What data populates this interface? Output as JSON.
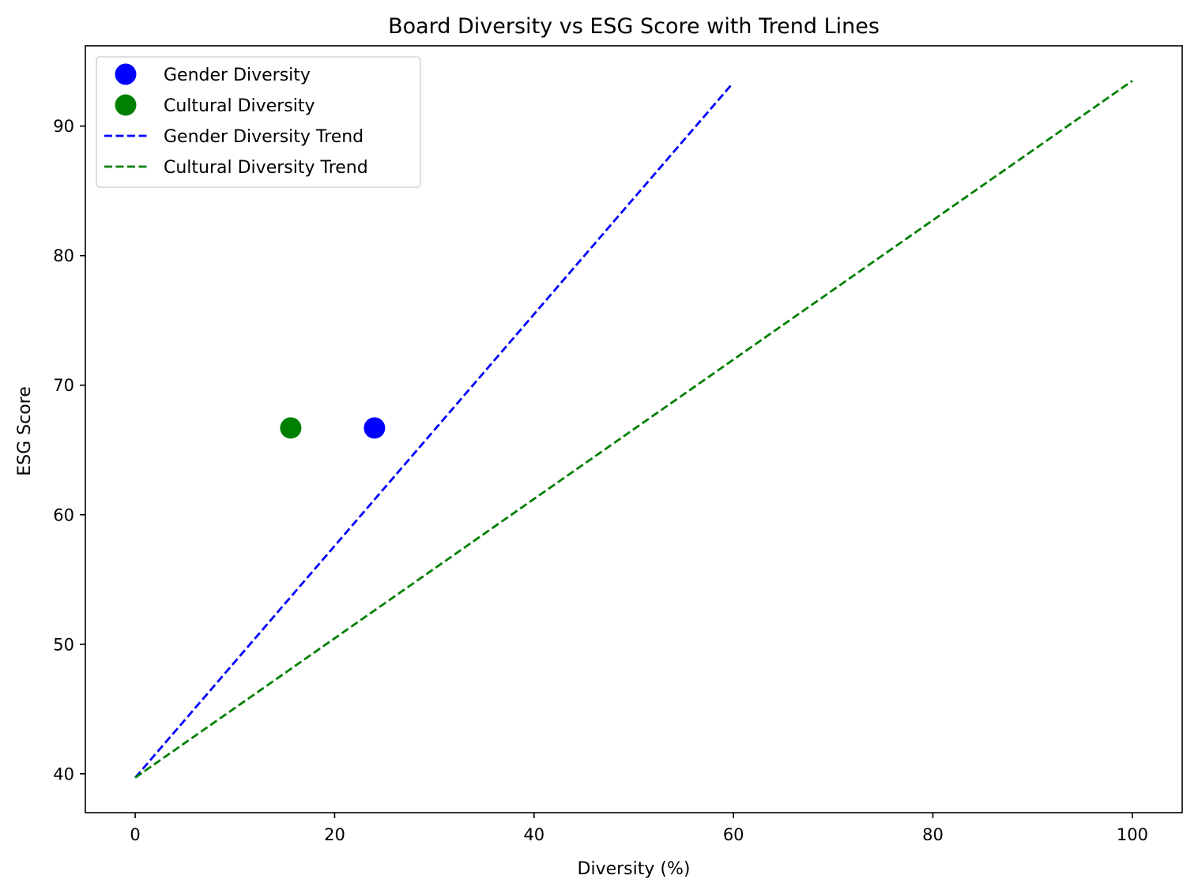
{
  "chart_data": {
    "type": "scatter",
    "title": "Board Diversity vs ESG Score with Trend Lines",
    "xlabel": "Diversity (%)",
    "ylabel": "ESG Score",
    "xlim": [
      -5,
      105
    ],
    "ylim": [
      37,
      96.2
    ],
    "xticks": [
      0,
      20,
      40,
      60,
      80,
      100
    ],
    "yticks": [
      40,
      50,
      60,
      70,
      80,
      90
    ],
    "grid": false,
    "legend_position": "top-left",
    "points": [
      {
        "name": "Gender Diversity",
        "x": 24.0,
        "y": 66.7,
        "color": "#0000ff"
      },
      {
        "name": "Cultural Diversity",
        "x": 15.6,
        "y": 66.7,
        "color": "#008000"
      }
    ],
    "trend_lines": [
      {
        "name": "Gender Diversity Trend",
        "x": [
          0,
          59.8
        ],
        "y": [
          39.7,
          93.2
        ],
        "color": "#0000ff",
        "style": "dashed"
      },
      {
        "name": "Cultural Diversity Trend",
        "x": [
          0,
          100
        ],
        "y": [
          39.7,
          93.5
        ],
        "color": "#008000",
        "style": "dashed"
      }
    ],
    "legend": [
      {
        "label": "Gender Diversity",
        "kind": "marker",
        "color": "#0000ff"
      },
      {
        "label": "Cultural Diversity",
        "kind": "marker",
        "color": "#008000"
      },
      {
        "label": "Gender Diversity Trend",
        "kind": "line",
        "color": "#0000ff"
      },
      {
        "label": "Cultural Diversity Trend",
        "kind": "line",
        "color": "#008000"
      }
    ]
  }
}
